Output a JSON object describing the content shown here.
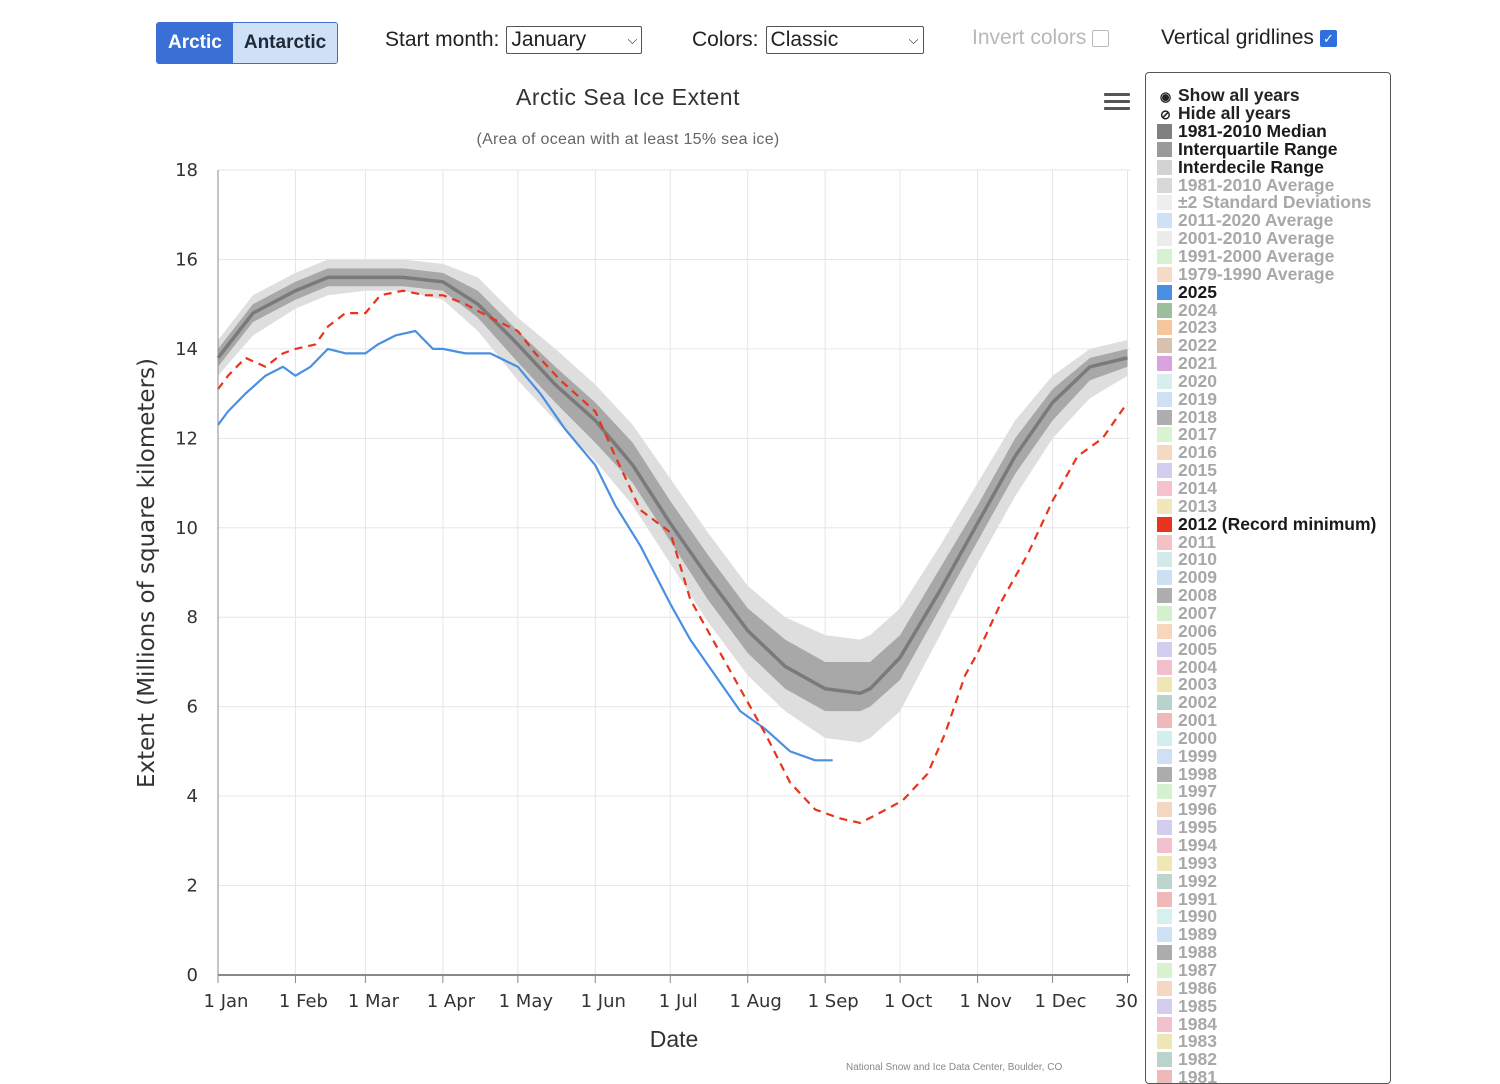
{
  "toolbar": {
    "hemisphere": [
      "Arctic",
      "Antarctic"
    ],
    "start_month_label": "Start month:",
    "start_month_value": "January",
    "colors_label": "Colors:",
    "colors_value": "Classic",
    "invert_label": "Invert colors",
    "gridlines_label": "Vertical gridlines"
  },
  "legend": {
    "show_all": "Show all years",
    "hide_all": "Hide all years",
    "items": [
      {
        "label": "1981-2010 Median",
        "color": "#808080",
        "active": true
      },
      {
        "label": "Interquartile Range",
        "color": "#9a9a9a",
        "active": true
      },
      {
        "label": "Interdecile Range",
        "color": "#d3d3d3",
        "active": true
      },
      {
        "label": "1981-2010 Average",
        "color": "#d8d8d8",
        "active": false
      },
      {
        "label": "±2 Standard Deviations",
        "color": "#eeeeee",
        "active": false
      },
      {
        "label": "2011-2020 Average",
        "color": "#cfe0f7",
        "active": false
      },
      {
        "label": "2001-2010 Average",
        "color": "#ececec",
        "active": false
      },
      {
        "label": "1991-2000 Average",
        "color": "#d6f2d3",
        "active": false
      },
      {
        "label": "1979-1990 Average",
        "color": "#f6dcc8",
        "active": false
      },
      {
        "label": "2025",
        "color": "#4a90e2",
        "active": true
      },
      {
        "label": "2024",
        "color": "#9bbf9b",
        "active": false
      },
      {
        "label": "2023",
        "color": "#f5c79b",
        "active": false
      },
      {
        "label": "2022",
        "color": "#d9c2ad",
        "active": false
      },
      {
        "label": "2021",
        "color": "#d9a3dd",
        "active": false
      },
      {
        "label": "2020",
        "color": "#d8eeee",
        "active": false
      },
      {
        "label": "2019",
        "color": "#cfe0f4",
        "active": false
      },
      {
        "label": "2018",
        "color": "#aeaeae",
        "active": false
      },
      {
        "label": "2017",
        "color": "#d7f3cf",
        "active": false
      },
      {
        "label": "2016",
        "color": "#f6d9c1",
        "active": false
      },
      {
        "label": "2015",
        "color": "#d1cdef",
        "active": false
      },
      {
        "label": "2014",
        "color": "#f4c1cc",
        "active": false
      },
      {
        "label": "2013",
        "color": "#f1e7b9",
        "active": false
      },
      {
        "label": "2012 (Record minimum)",
        "color": "#e8341c",
        "active": true
      },
      {
        "label": "2011",
        "color": "#f3c2c4",
        "active": false
      },
      {
        "label": "2010",
        "color": "#d3eaea",
        "active": false
      },
      {
        "label": "2009",
        "color": "#cde0f3",
        "active": false
      },
      {
        "label": "2008",
        "color": "#aeaeae",
        "active": false
      },
      {
        "label": "2007",
        "color": "#d4f1cd",
        "active": false
      },
      {
        "label": "2006",
        "color": "#f6d6bd",
        "active": false
      },
      {
        "label": "2005",
        "color": "#d4cdef",
        "active": false
      },
      {
        "label": "2004",
        "color": "#f3bfcd",
        "active": false
      },
      {
        "label": "2003",
        "color": "#efe6b4",
        "active": false
      },
      {
        "label": "2002",
        "color": "#b8d3cc",
        "active": false
      },
      {
        "label": "2001",
        "color": "#f0b8b8",
        "active": false
      },
      {
        "label": "2000",
        "color": "#d4eeee",
        "active": false
      },
      {
        "label": "1999",
        "color": "#cfe0f4",
        "active": false
      },
      {
        "label": "1998",
        "color": "#acacac",
        "active": false
      },
      {
        "label": "1997",
        "color": "#d6f1cf",
        "active": false
      },
      {
        "label": "1996",
        "color": "#f4d7c0",
        "active": false
      },
      {
        "label": "1995",
        "color": "#d3cdf0",
        "active": false
      },
      {
        "label": "1994",
        "color": "#f3c0cd",
        "active": false
      },
      {
        "label": "1993",
        "color": "#efe7b6",
        "active": false
      },
      {
        "label": "1992",
        "color": "#bcd5cd",
        "active": false
      },
      {
        "label": "1991",
        "color": "#f0b9b9",
        "active": false
      },
      {
        "label": "1990",
        "color": "#d6f0f0",
        "active": false
      },
      {
        "label": "1989",
        "color": "#cfe1f5",
        "active": false
      },
      {
        "label": "1988",
        "color": "#acacac",
        "active": false
      },
      {
        "label": "1987",
        "color": "#d6f2cf",
        "active": false
      },
      {
        "label": "1986",
        "color": "#f5d8c1",
        "active": false
      },
      {
        "label": "1985",
        "color": "#d3cef0",
        "active": false
      },
      {
        "label": "1984",
        "color": "#f3c1ce",
        "active": false
      },
      {
        "label": "1983",
        "color": "#efe6b7",
        "active": false
      },
      {
        "label": "1982",
        "color": "#bad4cc",
        "active": false
      },
      {
        "label": "1981",
        "color": "#f0b9b9",
        "active": false
      }
    ]
  },
  "credit": "National Snow and Ice Data Center, Boulder, CO",
  "chart_data": {
    "type": "line",
    "title": "Arctic Sea Ice Extent",
    "subtitle": "(Area of ocean with at least 15% sea ice)",
    "xlabel": "Date",
    "ylabel": "Extent (Millions of square kilometers)",
    "ylim": [
      0,
      18
    ],
    "yticks": [
      0,
      2,
      4,
      6,
      8,
      10,
      12,
      14,
      16,
      18
    ],
    "xlim": [
      1,
      366
    ],
    "x_unit": "day of year",
    "xticks": [
      {
        "day": 1,
        "label": "1 Jan"
      },
      {
        "day": 32,
        "label": "1 Feb"
      },
      {
        "day": 60,
        "label": "1 Mar"
      },
      {
        "day": 91,
        "label": "1 Apr"
      },
      {
        "day": 121,
        "label": "1 May"
      },
      {
        "day": 152,
        "label": "1 Jun"
      },
      {
        "day": 182,
        "label": "1 Jul"
      },
      {
        "day": 213,
        "label": "1 Aug"
      },
      {
        "day": 244,
        "label": "1 Sep"
      },
      {
        "day": 274,
        "label": "1 Oct"
      },
      {
        "day": 305,
        "label": "1 Nov"
      },
      {
        "day": 335,
        "label": "1 Dec"
      },
      {
        "day": 365,
        "label": "30…"
      }
    ],
    "grid_vertical": true,
    "grid_horizontal": true,
    "x": [
      1,
      15,
      32,
      45,
      60,
      75,
      91,
      105,
      121,
      136,
      152,
      167,
      182,
      197,
      213,
      228,
      244,
      258,
      262,
      274,
      290,
      305,
      320,
      335,
      350,
      365
    ],
    "bands": {
      "interdecile_low": [
        13.4,
        14.3,
        14.9,
        15.2,
        15.3,
        15.3,
        15.1,
        14.4,
        13.3,
        12.4,
        11.5,
        10.5,
        9.2,
        7.9,
        6.7,
        5.9,
        5.3,
        5.2,
        5.3,
        5.9,
        7.6,
        9.2,
        10.7,
        12.0,
        12.9,
        13.4
      ],
      "interquartile_low": [
        13.6,
        14.6,
        15.1,
        15.4,
        15.4,
        15.4,
        15.3,
        14.7,
        13.7,
        12.8,
        11.9,
        11.0,
        9.7,
        8.4,
        7.2,
        6.4,
        5.9,
        5.9,
        6.0,
        6.6,
        8.2,
        9.7,
        11.2,
        12.4,
        13.3,
        13.6
      ],
      "median": [
        13.8,
        14.8,
        15.3,
        15.6,
        15.6,
        15.6,
        15.5,
        15.0,
        14.1,
        13.2,
        12.4,
        11.4,
        10.1,
        8.9,
        7.7,
        6.9,
        6.4,
        6.3,
        6.4,
        7.1,
        8.6,
        10.1,
        11.6,
        12.8,
        13.6,
        13.8
      ],
      "interquartile_high": [
        14.0,
        15.0,
        15.5,
        15.8,
        15.8,
        15.8,
        15.7,
        15.3,
        14.4,
        13.6,
        12.8,
        11.9,
        10.6,
        9.4,
        8.2,
        7.5,
        7.0,
        7.0,
        7.0,
        7.6,
        9.1,
        10.5,
        12.0,
        13.1,
        13.8,
        14.0
      ],
      "interdecile_high": [
        14.2,
        15.2,
        15.7,
        16.0,
        16.0,
        16.0,
        15.9,
        15.6,
        14.7,
        14.0,
        13.2,
        12.3,
        11.1,
        9.9,
        8.7,
        8.0,
        7.6,
        7.5,
        7.6,
        8.2,
        9.6,
        11.0,
        12.4,
        13.4,
        14.0,
        14.2
      ]
    },
    "series": [
      {
        "name": "2025",
        "color": "#4a90e2",
        "dashed": false,
        "x": [
          1,
          5,
          12,
          20,
          27,
          32,
          38,
          45,
          52,
          60,
          65,
          72,
          80,
          87,
          91,
          100,
          110,
          121,
          130,
          140,
          152,
          160,
          170,
          182,
          190,
          200,
          210,
          220,
          230,
          240,
          247
        ],
        "y": [
          12.3,
          12.6,
          13.0,
          13.4,
          13.6,
          13.4,
          13.6,
          14.0,
          13.9,
          13.9,
          14.1,
          14.3,
          14.4,
          14.0,
          14.0,
          13.9,
          13.9,
          13.6,
          13.0,
          12.2,
          11.4,
          10.5,
          9.6,
          8.3,
          7.5,
          6.7,
          5.9,
          5.5,
          5.0,
          4.8,
          4.8
        ]
      },
      {
        "name": "2012 (Record minimum)",
        "color": "#e8341c",
        "dashed": true,
        "x": [
          1,
          5,
          12,
          20,
          27,
          32,
          40,
          45,
          52,
          60,
          66,
          75,
          84,
          91,
          100,
          110,
          121,
          128,
          138,
          152,
          160,
          170,
          182,
          190,
          200,
          210,
          220,
          230,
          240,
          250,
          258,
          265,
          275,
          285,
          292,
          300,
          305,
          315,
          325,
          335,
          345,
          355,
          365
        ],
        "y": [
          13.1,
          13.4,
          13.8,
          13.6,
          13.9,
          14.0,
          14.1,
          14.5,
          14.8,
          14.8,
          15.2,
          15.3,
          15.2,
          15.2,
          15.0,
          14.7,
          14.4,
          13.9,
          13.3,
          12.6,
          11.6,
          10.4,
          9.9,
          8.4,
          7.4,
          6.4,
          5.4,
          4.3,
          3.7,
          3.5,
          3.4,
          3.6,
          3.9,
          4.5,
          5.4,
          6.7,
          7.2,
          8.4,
          9.4,
          10.6,
          11.6,
          12.0,
          12.8
        ]
      }
    ]
  }
}
